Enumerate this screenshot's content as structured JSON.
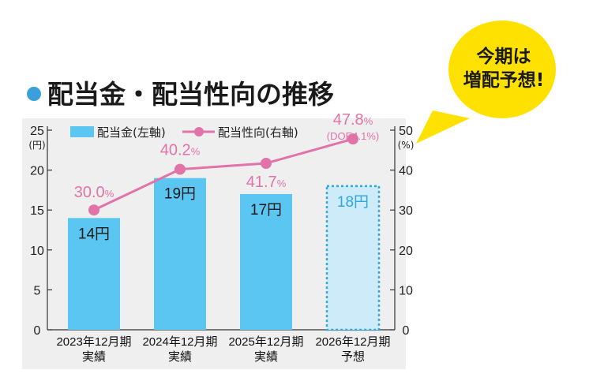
{
  "title": "配当金・配当性向の推移",
  "bubble": {
    "line1": "今期は",
    "line2": "増配予想!"
  },
  "colors": {
    "bar": "#5bc6f2",
    "bar_forecast_fill": "#cdebf9",
    "bar_forecast_border": "#2ea7e0",
    "line": "#e173a8",
    "plot_bg": "#efefef",
    "bubble": "#ffe100",
    "title_dot": "#3aa0dc"
  },
  "legend": {
    "bar_label": "配当金(左軸)",
    "line_label": "配当性向(右軸)"
  },
  "chart_data": {
    "type": "bar",
    "categories": [
      "2023年12月期|実績",
      "2024年12月期|実績",
      "2025年12月期|実績",
      "2026年12月期|予想"
    ],
    "left_axis": {
      "unit": "(円)",
      "ylim": [
        0,
        25
      ],
      "ticks": [
        "0",
        "5",
        "10",
        "15",
        "20",
        "25"
      ]
    },
    "right_axis": {
      "unit": "(%)",
      "ylim": [
        0,
        50
      ],
      "ticks": [
        "0",
        "10",
        "20",
        "30",
        "40",
        "50"
      ]
    },
    "series": [
      {
        "name": "配当金(左軸)",
        "type": "bar",
        "axis": "left",
        "values": [
          14,
          19,
          17,
          18
        ],
        "labels": [
          "14円",
          "19円",
          "17円",
          "18円"
        ],
        "forecast": [
          false,
          false,
          false,
          true
        ]
      },
      {
        "name": "配当性向(右軸)",
        "type": "line",
        "axis": "right",
        "values": [
          30.0,
          40.2,
          41.7,
          47.8
        ],
        "labels": [
          "30.0",
          "40.2",
          "41.7",
          "47.8"
        ],
        "label_suffix": "%",
        "extra_note": [
          "",
          "",
          "",
          "(DOE4.1%)"
        ]
      }
    ],
    "grid": false,
    "legend_position": "top"
  }
}
